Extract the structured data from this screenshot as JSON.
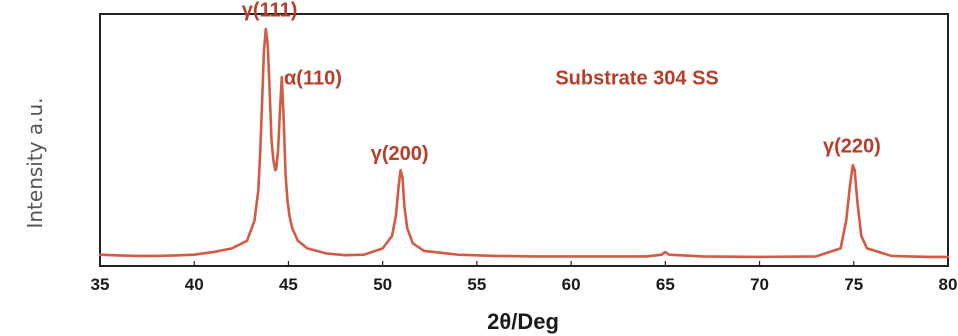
{
  "chart_data": {
    "type": "line",
    "title": "",
    "xlabel": "2θ/Deg",
    "ylabel": "Intensity a.u.",
    "xlim": [
      35,
      80
    ],
    "ylim": [
      0,
      100
    ],
    "x_ticks": [
      35,
      40,
      45,
      50,
      55,
      60,
      65,
      70,
      75,
      80
    ],
    "x_tick_labels": [
      "35",
      "40",
      "45",
      "50",
      "55",
      "60",
      "65",
      "70",
      "75",
      "80"
    ],
    "series": [
      {
        "name": "",
        "color": "#d35b45",
        "x": [
          35.0,
          36.0,
          37.0,
          38.0,
          39.0,
          40.0,
          41.0,
          42.0,
          42.8,
          43.2,
          43.4,
          43.5,
          43.6,
          43.7,
          43.8,
          43.9,
          44.0,
          44.1,
          44.2,
          44.3,
          44.35,
          44.45,
          44.55,
          44.65,
          44.75,
          44.85,
          44.95,
          45.05,
          45.2,
          45.5,
          46.0,
          47.0,
          48.0,
          49.0,
          50.0,
          50.5,
          50.7,
          50.85,
          50.95,
          51.05,
          51.15,
          51.3,
          51.6,
          52.2,
          54.0,
          56.0,
          58.0,
          60.0,
          62.0,
          64.0,
          64.8,
          65.0,
          65.2,
          67.0,
          70.0,
          73.0,
          74.3,
          74.6,
          74.8,
          74.95,
          75.05,
          75.2,
          75.4,
          75.7,
          77.0,
          79.0,
          80.0
        ],
        "y": [
          4.5,
          4.2,
          4.0,
          4.0,
          4.2,
          4.5,
          5.5,
          7.0,
          10.0,
          18.0,
          30.0,
          45.0,
          65.0,
          85.0,
          94.0,
          88.0,
          70.0,
          50.0,
          42.0,
          38.0,
          38.5,
          46.0,
          62.0,
          75.0,
          58.0,
          36.0,
          26.0,
          20.0,
          15.0,
          10.0,
          7.0,
          5.0,
          4.3,
          4.5,
          7.0,
          12.0,
          20.0,
          32.0,
          38.0,
          35.0,
          24.0,
          15.0,
          9.0,
          6.0,
          4.5,
          4.0,
          3.8,
          3.8,
          3.8,
          3.8,
          4.5,
          5.5,
          4.5,
          3.8,
          3.6,
          3.8,
          7.0,
          18.0,
          32.0,
          40.0,
          38.0,
          25.0,
          12.0,
          7.0,
          4.0,
          3.6,
          3.6
        ]
      }
    ],
    "annotations": [
      {
        "text": "γ(111)",
        "x": 44.0,
        "y": 99.0
      },
      {
        "text": "α(110)",
        "x": 46.3,
        "y": 72.0
      },
      {
        "text": "γ(200)",
        "x": 50.9,
        "y": 42.0
      },
      {
        "text": "γ(220)",
        "x": 74.9,
        "y": 45.0
      },
      {
        "text": "Substrate 304 SS",
        "x": 63.5,
        "y": 72.0
      }
    ],
    "grid": false,
    "legend": "none"
  }
}
